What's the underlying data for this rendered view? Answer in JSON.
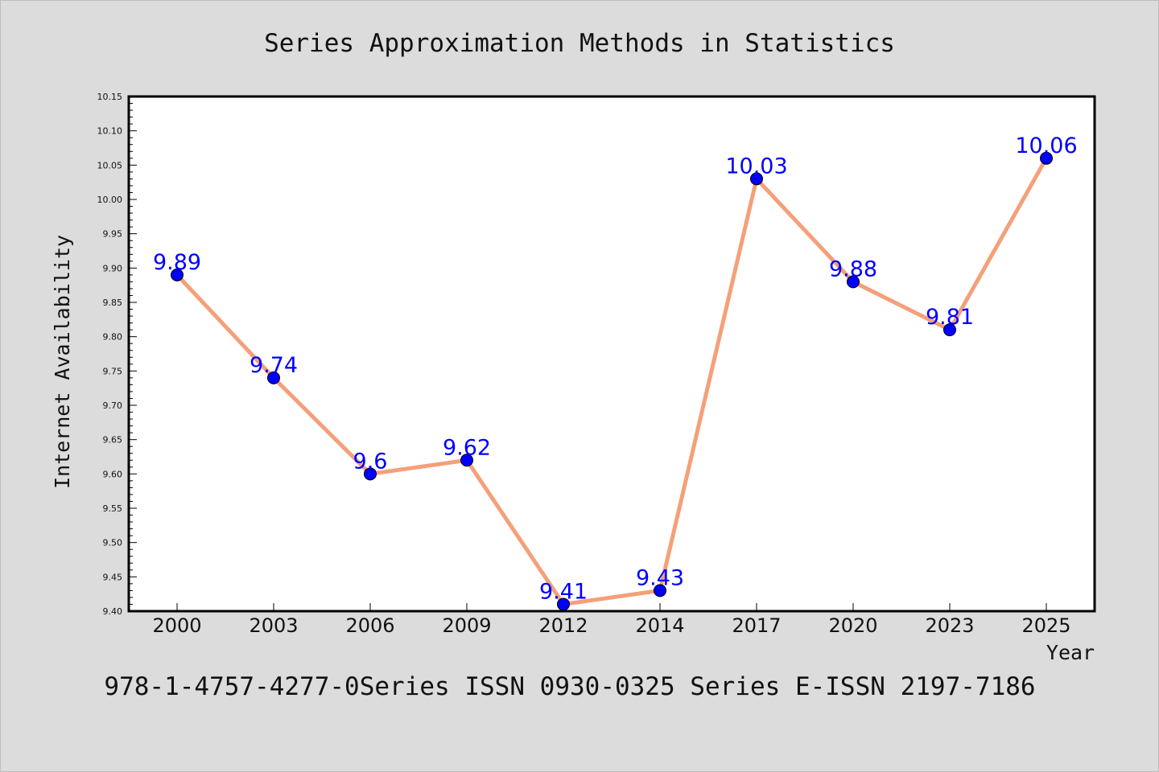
{
  "chart_data": {
    "type": "line",
    "title": "Series Approximation Methods in Statistics",
    "xlabel": "Year",
    "ylabel": "Internet Availability",
    "categories": [
      "2000",
      "2003",
      "2006",
      "2009",
      "2012",
      "2014",
      "2017",
      "2020",
      "2023",
      "2025"
    ],
    "series": [
      {
        "values": [
          9.89,
          9.74,
          9.6,
          9.62,
          9.41,
          9.43,
          10.03,
          9.88,
          9.81,
          10.06
        ],
        "data_labels": [
          "9.89",
          "9.74",
          "9.6",
          "9.62",
          "9.41",
          "9.43",
          "10.03",
          "9.88",
          "9.81",
          "10.06"
        ],
        "line_color": "#f4a07a",
        "marker_color": "#0000ff",
        "label_color": "#0000ff"
      }
    ],
    "ylim": [
      9.4,
      10.15
    ],
    "yticks": [
      "9.40",
      "9.45",
      "9.50",
      "9.55",
      "9.60",
      "9.65",
      "9.70",
      "9.75",
      "9.80",
      "9.85",
      "9.90",
      "9.95",
      "10.00",
      "10.05",
      "10.10",
      "10.15"
    ],
    "grid": false,
    "legend": "none",
    "background_color": "#dcdcdc",
    "plot_background_color": "#ffffff"
  },
  "footer": "978-1-4757-4277-0Series ISSN 0930-0325 Series E-ISSN 2197-7186"
}
